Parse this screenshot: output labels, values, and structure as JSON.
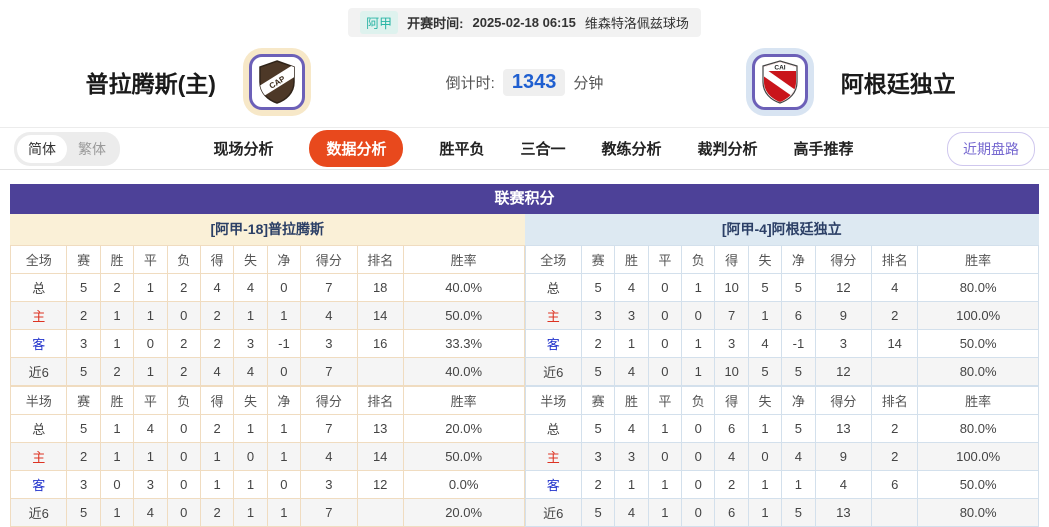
{
  "match_bar": {
    "league": "阿甲",
    "kickoff_label": "开赛时间:",
    "kickoff_time": "2025-02-18 06:15",
    "venue": "维森特洛佩兹球场"
  },
  "teams": {
    "home": {
      "name": "普拉腾斯(主)",
      "logo_text": "CAP"
    },
    "away": {
      "name": "阿根廷独立",
      "logo_text": "CAI"
    }
  },
  "countdown": {
    "label": "倒计时:",
    "value": "1343",
    "unit": "分钟"
  },
  "nav": {
    "lang": [
      {
        "label": "简体",
        "active": true
      },
      {
        "label": "繁体",
        "active": false
      }
    ],
    "tabs": [
      {
        "label": "现场分析",
        "active": false
      },
      {
        "label": "数据分析",
        "active": true
      },
      {
        "label": "胜平负",
        "active": false
      },
      {
        "label": "三合一",
        "active": false
      },
      {
        "label": "教练分析",
        "active": false
      },
      {
        "label": "裁判分析",
        "active": false
      },
      {
        "label": "高手推荐",
        "active": false
      }
    ],
    "recent_button": "近期盘路"
  },
  "table": {
    "title": "联赛积分",
    "home": {
      "subtitle": "[阿甲-18]普拉腾斯",
      "sections": [
        {
          "header": [
            "全场",
            "赛",
            "胜",
            "平",
            "负",
            "得",
            "失",
            "净",
            "得分",
            "排名",
            "胜率"
          ],
          "rows": [
            {
              "label": "总",
              "type": "total",
              "cells": [
                "5",
                "2",
                "1",
                "2",
                "4",
                "4",
                "0",
                "7",
                "18",
                "40.0%"
              ]
            },
            {
              "label": "主",
              "type": "home",
              "cells": [
                "2",
                "1",
                "1",
                "0",
                "2",
                "1",
                "1",
                "4",
                "14",
                "50.0%"
              ]
            },
            {
              "label": "客",
              "type": "away",
              "cells": [
                "3",
                "1",
                "0",
                "2",
                "2",
                "3",
                "-1",
                "3",
                "16",
                "33.3%"
              ]
            },
            {
              "label": "近6",
              "type": "recent",
              "cells": [
                "5",
                "2",
                "1",
                "2",
                "4",
                "4",
                "0",
                "7",
                "",
                "40.0%"
              ]
            }
          ]
        },
        {
          "header": [
            "半场",
            "赛",
            "胜",
            "平",
            "负",
            "得",
            "失",
            "净",
            "得分",
            "排名",
            "胜率"
          ],
          "rows": [
            {
              "label": "总",
              "type": "total",
              "cells": [
                "5",
                "1",
                "4",
                "0",
                "2",
                "1",
                "1",
                "7",
                "13",
                "20.0%"
              ]
            },
            {
              "label": "主",
              "type": "home",
              "cells": [
                "2",
                "1",
                "1",
                "0",
                "1",
                "0",
                "1",
                "4",
                "14",
                "50.0%"
              ]
            },
            {
              "label": "客",
              "type": "away",
              "cells": [
                "3",
                "0",
                "3",
                "0",
                "1",
                "1",
                "0",
                "3",
                "12",
                "0.0%"
              ]
            },
            {
              "label": "近6",
              "type": "recent",
              "cells": [
                "5",
                "1",
                "4",
                "0",
                "2",
                "1",
                "1",
                "7",
                "",
                "20.0%"
              ]
            }
          ]
        }
      ]
    },
    "away": {
      "subtitle": "[阿甲-4]阿根廷独立",
      "sections": [
        {
          "header": [
            "全场",
            "赛",
            "胜",
            "平",
            "负",
            "得",
            "失",
            "净",
            "得分",
            "排名",
            "胜率"
          ],
          "rows": [
            {
              "label": "总",
              "type": "total",
              "cells": [
                "5",
                "4",
                "0",
                "1",
                "10",
                "5",
                "5",
                "12",
                "4",
                "80.0%"
              ]
            },
            {
              "label": "主",
              "type": "home",
              "cells": [
                "3",
                "3",
                "0",
                "0",
                "7",
                "1",
                "6",
                "9",
                "2",
                "100.0%"
              ]
            },
            {
              "label": "客",
              "type": "away",
              "cells": [
                "2",
                "1",
                "0",
                "1",
                "3",
                "4",
                "-1",
                "3",
                "14",
                "50.0%"
              ]
            },
            {
              "label": "近6",
              "type": "recent",
              "cells": [
                "5",
                "4",
                "0",
                "1",
                "10",
                "5",
                "5",
                "12",
                "",
                "80.0%"
              ]
            }
          ]
        },
        {
          "header": [
            "半场",
            "赛",
            "胜",
            "平",
            "负",
            "得",
            "失",
            "净",
            "得分",
            "排名",
            "胜率"
          ],
          "rows": [
            {
              "label": "总",
              "type": "total",
              "cells": [
                "5",
                "4",
                "1",
                "0",
                "6",
                "1",
                "5",
                "13",
                "2",
                "80.0%"
              ]
            },
            {
              "label": "主",
              "type": "home",
              "cells": [
                "3",
                "3",
                "0",
                "0",
                "4",
                "0",
                "4",
                "9",
                "2",
                "100.0%"
              ]
            },
            {
              "label": "客",
              "type": "away",
              "cells": [
                "2",
                "1",
                "1",
                "0",
                "2",
                "1",
                "1",
                "4",
                "6",
                "50.0%"
              ]
            },
            {
              "label": "近6",
              "type": "recent",
              "cells": [
                "5",
                "4",
                "1",
                "0",
                "6",
                "1",
                "5",
                "13",
                "",
                "80.0%"
              ]
            }
          ]
        }
      ]
    }
  },
  "colors": {
    "accent": "#e8491d",
    "title_bar": "#4d4198",
    "home_panel": "#faf0d7",
    "away_panel": "#dde9f2",
    "home_border": "#f0dcc0",
    "away_border": "#d3e0ec",
    "countdown_blue": "#1f5fd0",
    "league_teal": "#2ab5a5",
    "label_red": "#dd3322",
    "label_blue": "#2233cc",
    "button_purple": "#7668d0",
    "stripe": "#f5f5f5"
  }
}
